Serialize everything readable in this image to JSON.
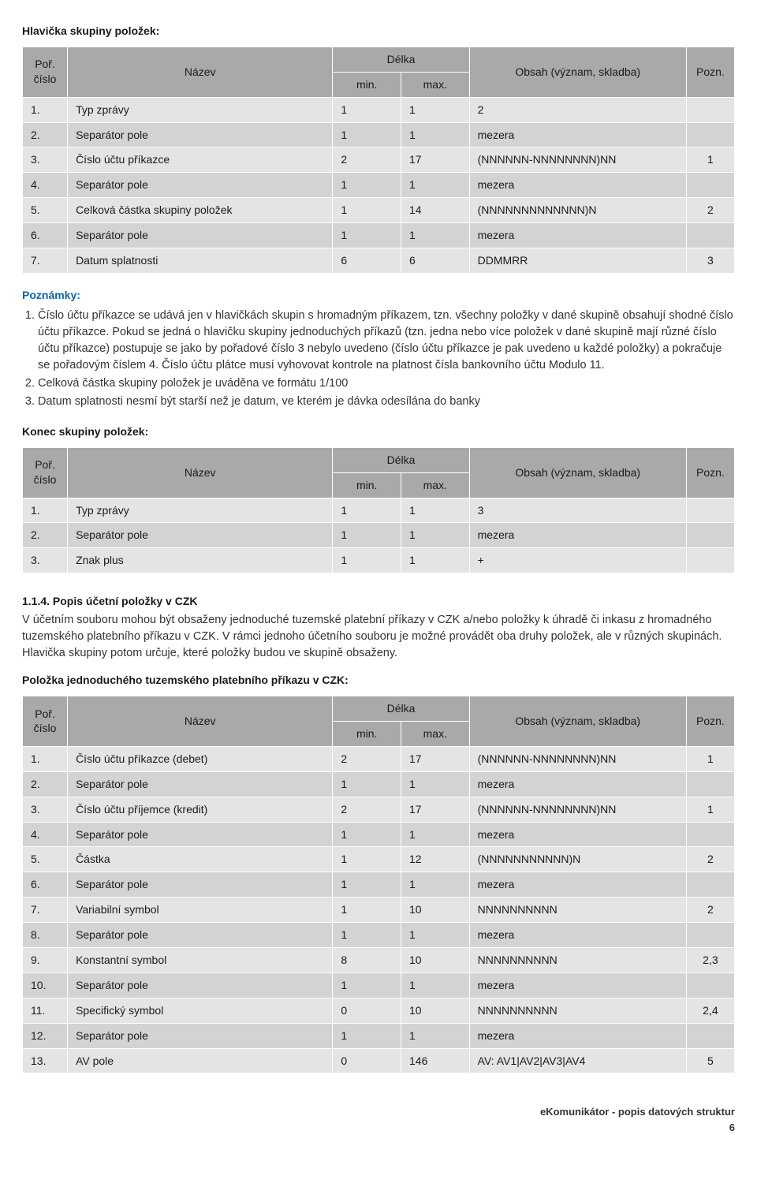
{
  "colors": {
    "header_bg": "#a9a9ac",
    "row_odd": "#e4e4e5",
    "row_even": "#d3d3d5",
    "border": "#ffffff",
    "text": "#1a1a1a",
    "notes_heading": "#0a66b0"
  },
  "table_fonts": {
    "cell_fontsize": 14,
    "header_fontsize": 14
  },
  "section1": {
    "title": "Hlavička skupiny položek:",
    "columns": {
      "por": "Poř. číslo",
      "nazev": "Název",
      "delka": "Délka",
      "min": "min.",
      "max": "max.",
      "obsah": "Obsah (význam, skladba)",
      "pozn": "Pozn."
    },
    "rows": [
      {
        "por": "1.",
        "nazev": "Typ zprávy",
        "min": "1",
        "max": "1",
        "obsah": "2",
        "pozn": ""
      },
      {
        "por": "2.",
        "nazev": "Separátor pole",
        "min": "1",
        "max": "1",
        "obsah": "mezera",
        "pozn": ""
      },
      {
        "por": "3.",
        "nazev": "Číslo účtu příkazce",
        "min": "2",
        "max": "17",
        "obsah": "(NNNNNN-NNNNNNNN)NN",
        "pozn": "1"
      },
      {
        "por": "4.",
        "nazev": "Separátor pole",
        "min": "1",
        "max": "1",
        "obsah": "mezera",
        "pozn": ""
      },
      {
        "por": "5.",
        "nazev": "Celková částka skupiny položek",
        "min": "1",
        "max": "14",
        "obsah": "(NNNNNNNNNNNNN)N",
        "pozn": "2"
      },
      {
        "por": "6.",
        "nazev": "Separátor pole",
        "min": "1",
        "max": "1",
        "obsah": "mezera",
        "pozn": ""
      },
      {
        "por": "7.",
        "nazev": "Datum splatnosti",
        "min": "6",
        "max": "6",
        "obsah": "DDMMRR",
        "pozn": "3"
      }
    ]
  },
  "notes": {
    "title": "Poznámky:",
    "items": [
      "Číslo účtu příkazce se udává jen v hlavičkách skupin s hromadným příkazem, tzn. všechny položky v dané skupině obsahují shodné číslo účtu příkazce. Pokud se jedná o hlavičku skupiny jednoduchých příkazů (tzn. jedna nebo více položek v dané skupině mají různé číslo účtu příkazce) postupuje se jako by pořadové číslo 3 nebylo uvedeno (číslo účtu příkazce je pak uvedeno u každé položky) a pokračuje se pořadovým číslem 4. Číslo účtu plátce musí vyhovovat kontrole na platnost čísla bankovního účtu Modulo 11.",
      "Celková částka skupiny položek je uváděna ve formátu 1/100",
      "Datum splatnosti nesmí být starší než je datum, ve kterém je dávka odesílána do banky"
    ]
  },
  "section2": {
    "title": "Konec skupiny položek:",
    "columns": {
      "por": "Poř. číslo",
      "nazev": "Název",
      "delka": "Délka",
      "min": "min.",
      "max": "max.",
      "obsah": "Obsah (význam, skladba)",
      "pozn": "Pozn."
    },
    "rows": [
      {
        "por": "1.",
        "nazev": "Typ zprávy",
        "min": "1",
        "max": "1",
        "obsah": "3",
        "pozn": ""
      },
      {
        "por": "2.",
        "nazev": "Separátor pole",
        "min": "1",
        "max": "1",
        "obsah": "mezera",
        "pozn": ""
      },
      {
        "por": "3.",
        "nazev": "Znak plus",
        "min": "1",
        "max": "1",
        "obsah": "+",
        "pozn": ""
      }
    ]
  },
  "section3": {
    "heading": "1.1.4. Popis účetní položky v CZK",
    "paragraph": "V účetním souboru mohou být obsaženy jednoduché tuzemské platební příkazy v CZK a/nebo položky k úhradě či inkasu z hromadného tuzemského platebního příkazu v CZK. V rámci jednoho účetního souboru je možné provádět oba druhy položek, ale v různých skupinách. Hlavička skupiny potom určuje, které položky budou ve skupině obsaženy."
  },
  "section4": {
    "title": "Položka jednoduchého tuzemského platebního příkazu v CZK:",
    "columns": {
      "por": "Poř. číslo",
      "nazev": "Název",
      "delka": "Délka",
      "min": "min.",
      "max": "max.",
      "obsah": "Obsah (význam, skladba)",
      "pozn": "Pozn."
    },
    "rows": [
      {
        "por": "1.",
        "nazev": "Číslo účtu příkazce (debet)",
        "min": "2",
        "max": "17",
        "obsah": "(NNNNNN-NNNNNNNN)NN",
        "pozn": "1"
      },
      {
        "por": "2.",
        "nazev": "Separátor pole",
        "min": "1",
        "max": "1",
        "obsah": "mezera",
        "pozn": ""
      },
      {
        "por": "3.",
        "nazev": "Číslo účtu příjemce (kredit)",
        "min": "2",
        "max": "17",
        "obsah": "(NNNNNN-NNNNNNNN)NN",
        "pozn": "1"
      },
      {
        "por": "4.",
        "nazev": "Separátor pole",
        "min": "1",
        "max": "1",
        "obsah": "mezera",
        "pozn": ""
      },
      {
        "por": "5.",
        "nazev": "Částka",
        "min": "1",
        "max": "12",
        "obsah": "(NNNNNNNNNNN)N",
        "pozn": "2"
      },
      {
        "por": "6.",
        "nazev": "Separátor pole",
        "min": "1",
        "max": "1",
        "obsah": "mezera",
        "pozn": ""
      },
      {
        "por": "7.",
        "nazev": "Variabilní symbol",
        "min": "1",
        "max": "10",
        "obsah": "NNNNNNNNNN",
        "pozn": "2"
      },
      {
        "por": "8.",
        "nazev": "Separátor pole",
        "min": "1",
        "max": "1",
        "obsah": "mezera",
        "pozn": ""
      },
      {
        "por": "9.",
        "nazev": "Konstantní symbol",
        "min": "8",
        "max": "10",
        "obsah": "NNNNNNNNNN",
        "pozn": "2,3"
      },
      {
        "por": "10.",
        "nazev": "Separátor pole",
        "min": "1",
        "max": "1",
        "obsah": "mezera",
        "pozn": ""
      },
      {
        "por": "11.",
        "nazev": "Specifický symbol",
        "min": "0",
        "max": "10",
        "obsah": "NNNNNNNNNN",
        "pozn": "2,4"
      },
      {
        "por": "12.",
        "nazev": "Separátor pole",
        "min": "1",
        "max": "1",
        "obsah": "mezera",
        "pozn": ""
      },
      {
        "por": "13.",
        "nazev": "AV pole",
        "min": "0",
        "max": "146",
        "obsah": "AV: AV1|AV2|AV3|AV4",
        "pozn": "5"
      }
    ]
  },
  "footer": {
    "title": "eKomunikátor - popis datových struktur",
    "page": "6"
  }
}
